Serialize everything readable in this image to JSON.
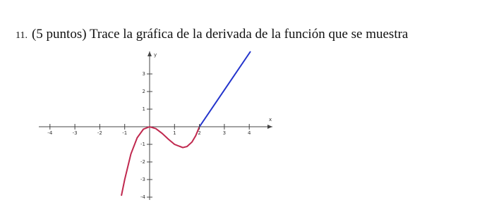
{
  "question": {
    "number": "11.",
    "text": "(5 puntos) Trace la gráfica de la derivada de la función que se muestra"
  },
  "figure": {
    "x_label": "x",
    "y_label": "y",
    "x_ticks": [
      -4,
      -3,
      -2,
      -1,
      1,
      2,
      3,
      4
    ],
    "y_ticks": [
      3,
      2,
      1,
      -1,
      -2,
      -3,
      -4
    ]
  }
}
